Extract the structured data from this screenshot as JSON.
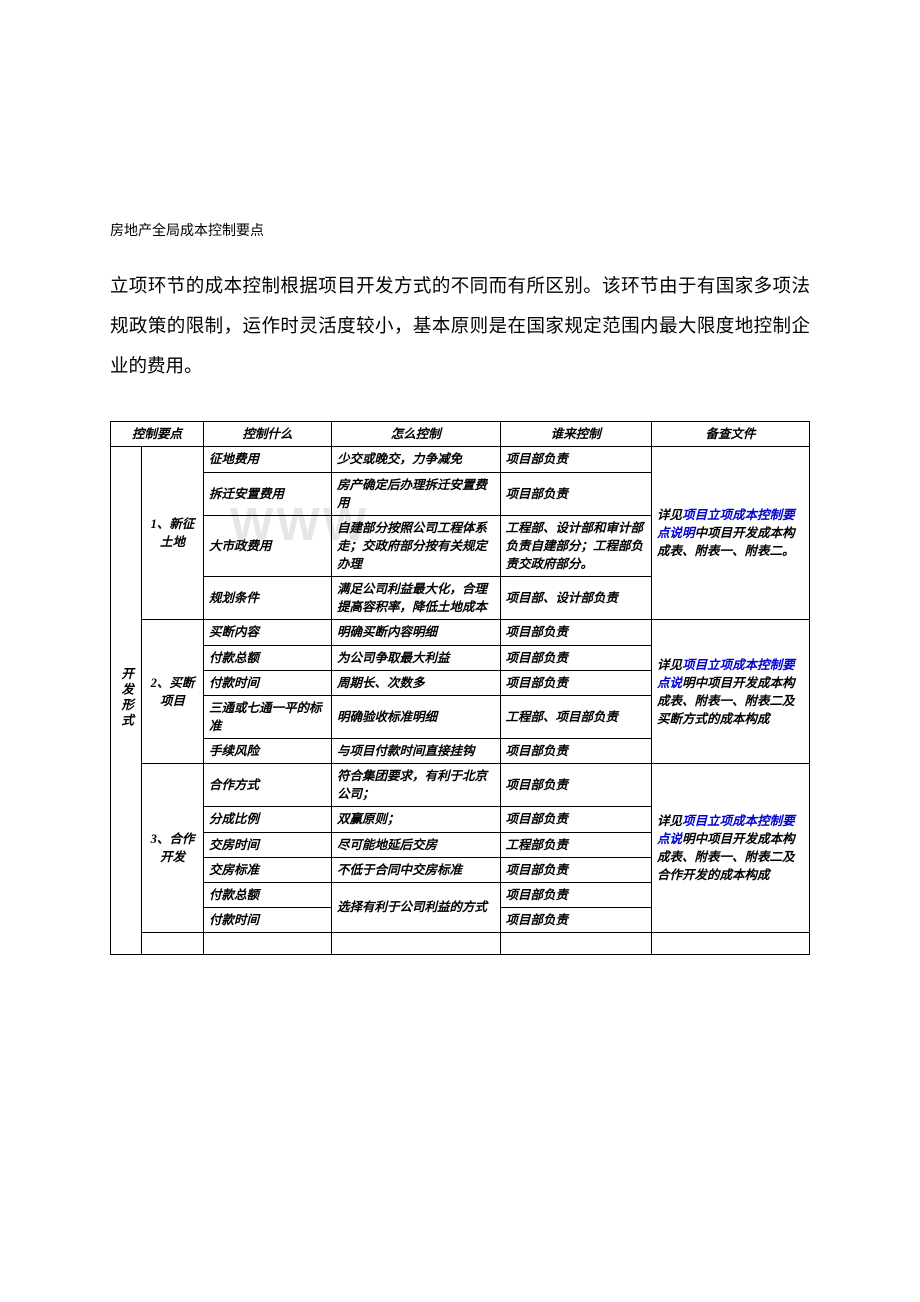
{
  "title_small": "房地产全局成本控制要点",
  "paragraph": "立项环节的成本控制根据项目开发方式的不同而有所区别。该环节由于有国家多项法规政策的限制，运作时灵活度较小，基本原则是在国家规定范围内最大限度地控制企业的费用。",
  "watermark": "WWW",
  "headers": {
    "h_ab": "控制要点",
    "h_c": "控制什么",
    "h_d": "怎么控制",
    "h_e": "谁来控制",
    "h_f": "备查文件"
  },
  "col_a_label": "开发形式",
  "sections": {
    "s1_label": "1、新征土地",
    "s2_label": "2、买断项目",
    "s3_label": "3、合作开发"
  },
  "rows": {
    "r1": {
      "c": "征地费用",
      "d": "少交或晚交，力争减免",
      "e": "项目部负责"
    },
    "r2": {
      "c": "拆迁安置费用",
      "d": "房产确定后办理拆迁安置费用",
      "e": "项目部负责"
    },
    "r3": {
      "c": "大市政费用",
      "d": "自建部分按照公司工程体系走；交政府部分按有关规定办理",
      "e": "工程部、设计部和审计部负责自建部分；工程部负责交政府部分。"
    },
    "r4": {
      "c": "规划条件",
      "d": "满足公司利益最大化，合理提高容积率，降低土地成本",
      "e": "项目部、设计部负责"
    },
    "r5": {
      "c": "买断内容",
      "d": "明确买断内容明细",
      "e": "项目部负责"
    },
    "r6": {
      "c": "付款总额",
      "d": "为公司争取最大利益",
      "e": "项目部负责"
    },
    "r7": {
      "c": "付款时间",
      "d": "周期长、次数多",
      "e": "项目部负责"
    },
    "r8": {
      "c": "三通或七通一平的标准",
      "d": "明确验收标准明细",
      "e": "工程部、项目部负责"
    },
    "r9": {
      "c": "手续风险",
      "d": "与项目付款时间直接挂钩",
      "e": "项目部负责"
    },
    "r10": {
      "c": "合作方式",
      "d": "符合集团要求，有利于北京公司；",
      "e": "项目部负责"
    },
    "r11": {
      "c": "分成比例",
      "d": "双赢原则；",
      "e": "项目部负责"
    },
    "r12": {
      "c": "交房时间",
      "d": "尽可能地延后交房",
      "e": "工程部负责"
    },
    "r13": {
      "c": "交房标准",
      "d": "不低于合同中交房标准",
      "e": "项目部负责"
    },
    "r14": {
      "c": "付款总额",
      "d_combined_top": "选择有利于公司利益的",
      "e": "项目部负责"
    },
    "r15": {
      "c": "付款时间",
      "d_combined_bottom": "方式",
      "e": "项目部负责"
    }
  },
  "notes": {
    "n1_pre": "详见",
    "n1_link": "项目立项成本控制要点说明",
    "n1_post": "中项目开发成本构成表、附表一、附表二。",
    "n2_pre": "详见",
    "n2_link": "项目立项成本控制要点说",
    "n2_post": "明中项目开发成本构成表、附表一、附表二及买断方式的成本构成",
    "n3_pre": "详见",
    "n3_link": "项目立项成本控制要点说",
    "n3_post": "明中项目开发成本构成表、附表一、附表二及合作开发的成本构成"
  },
  "colors": {
    "text": "#000000",
    "link": "#0000d0",
    "watermark": "#e6e6e6",
    "border": "#000000",
    "background": "#ffffff"
  },
  "fonts": {
    "body_size_pt": 14,
    "table_size_pt": 9.5,
    "title_size_pt": 10.5
  }
}
